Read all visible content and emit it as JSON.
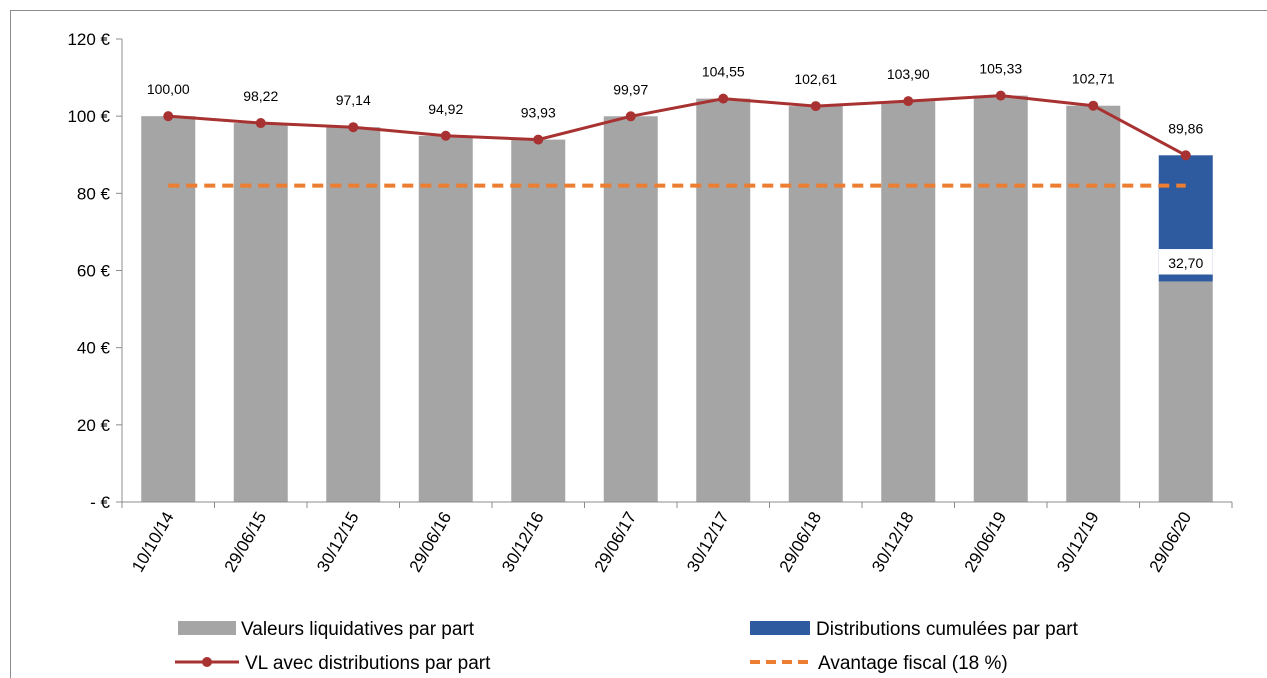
{
  "chart_data": {
    "type": "bar",
    "categories": [
      "10/10/14",
      "29/06/15",
      "30/12/15",
      "29/06/16",
      "30/12/16",
      "29/06/17",
      "30/12/17",
      "29/06/18",
      "30/12/18",
      "29/06/19",
      "30/12/19",
      "29/06/20"
    ],
    "series": [
      {
        "name": "Valeurs liquidatives par part",
        "kind": "bar",
        "color": "#a5a5a5",
        "values": [
          100.0,
          98.22,
          97.14,
          94.92,
          93.93,
          99.97,
          104.55,
          102.61,
          103.9,
          105.33,
          102.71,
          57.16
        ]
      },
      {
        "name": "Distributions cumulées par part",
        "kind": "stacked-bar",
        "color": "#2e5aa0",
        "values": [
          0,
          0,
          0,
          0,
          0,
          0,
          0,
          0,
          0,
          0,
          0,
          32.7
        ],
        "data_labels": [
          "",
          "",
          "",
          "",
          "",
          "",
          "",
          "",
          "",
          "",
          "",
          "32,70"
        ]
      },
      {
        "name": "VL avec distributions par part",
        "kind": "line-markers",
        "color": "#a83232",
        "values": [
          100.0,
          98.22,
          97.14,
          94.92,
          93.93,
          99.97,
          104.55,
          102.61,
          103.9,
          105.33,
          102.71,
          89.86
        ],
        "data_labels": [
          "100,00",
          "98,22",
          "97,14",
          "94,92",
          "93,93",
          "99,97",
          "104,55",
          "102,61",
          "103,90",
          "105,33",
          "102,71",
          "89,86"
        ]
      },
      {
        "name": "Avantage fiscal (18 %)",
        "kind": "dashed-line",
        "color": "#ed7d31",
        "values": [
          82,
          82,
          82,
          82,
          82,
          82,
          82,
          82,
          82,
          82,
          82,
          82
        ]
      }
    ],
    "y_ticks": [
      0,
      20,
      40,
      60,
      80,
      100,
      120
    ],
    "y_tick_labels": [
      "- €",
      "20 €",
      "40 €",
      "60 €",
      "80 €",
      "100 €",
      "120 €"
    ],
    "ylim": [
      0,
      120
    ],
    "grid": false,
    "legend_position": "bottom"
  }
}
